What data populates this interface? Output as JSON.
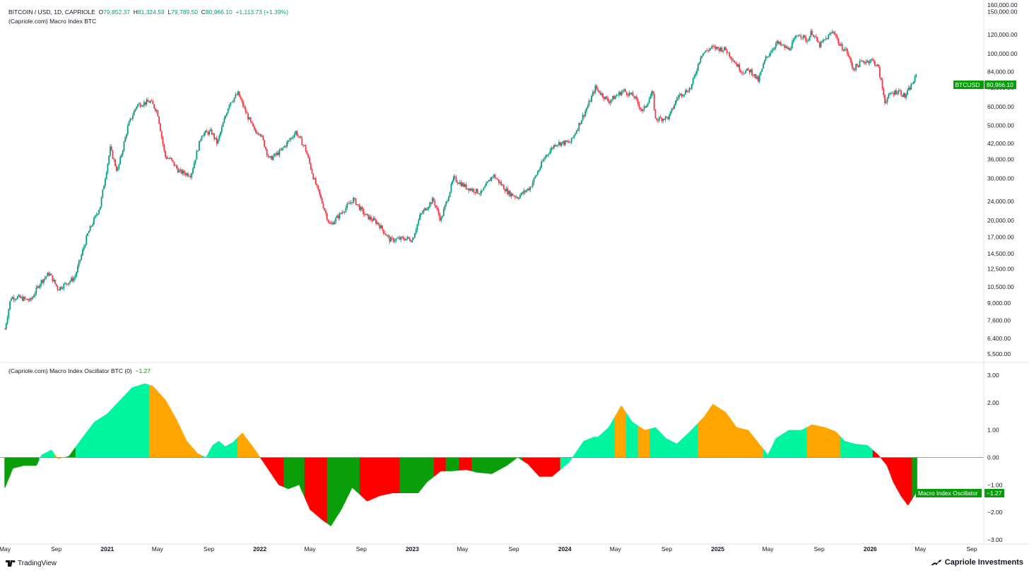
{
  "header": {
    "symbol": "BITCOIN / USD, 1D, CAPRIOLE",
    "open_label": "O",
    "open": "79,852.37",
    "high_label": "H",
    "high": "81,324.59",
    "low_label": "L",
    "low": "79,789.50",
    "close_label": "C",
    "close": "80,966.10",
    "change": "+1,113.73 (+1.39%)",
    "indicator": "(Capriole.com) Macro Index BTC"
  },
  "osc_header": {
    "name": "(Capriole.com) Macro Index Oscillator BTC (0)",
    "value": "−1.27"
  },
  "price_tag": {
    "label": "BTCUSD",
    "value": "80,966.10"
  },
  "osc_tag": {
    "label": "Macro Index Oscillator",
    "value": "−1.27"
  },
  "footer": {
    "left": "TradingView",
    "right": "Capriole Investments"
  },
  "colors": {
    "up": "#089981",
    "down": "#f23645",
    "osc_cyan": "#00f5a0",
    "osc_orange": "#ffa500",
    "osc_green": "#0a9e0a",
    "osc_red": "#ff0000",
    "tag_green": "#089c0a"
  },
  "chart_data": [
    {
      "type": "candlestick-line",
      "title": "BITCOIN / USD, 1D, CAPRIOLE",
      "scale": "log",
      "ylim": [
        5000,
        160000
      ],
      "y_ticks": [
        "160,000.00",
        "150,000.00",
        "120,000.00",
        "100,000.00",
        "84,000.00",
        "72,000.00",
        "60,000.00",
        "50,000.00",
        "42,000.00",
        "36,000.00",
        "30,000.00",
        "24,000.00",
        "20,000.00",
        "17,000.00",
        "14,500.00",
        "12,500.00",
        "10,500.00",
        "9,000.00",
        "7,600.00",
        "6,400.00",
        "5,500.00"
      ],
      "y_tick_values": [
        160000,
        150000,
        120000,
        100000,
        84000,
        72000,
        60000,
        50000,
        42000,
        36000,
        30000,
        24000,
        20000,
        17000,
        14500,
        12500,
        10500,
        9000,
        7600,
        6400,
        5500
      ],
      "x_ticks": [
        "May",
        "Sep",
        "2021",
        "May",
        "Sep",
        "2022",
        "May",
        "Sep",
        "2023",
        "May",
        "Sep",
        "2024",
        "May",
        "Sep",
        "2025",
        "May",
        "Sep",
        "2026",
        "May",
        "Sep"
      ],
      "x_tick_bold": [
        false,
        false,
        true,
        false,
        false,
        true,
        false,
        false,
        true,
        false,
        false,
        true,
        false,
        false,
        true,
        false,
        false,
        true,
        false,
        false
      ],
      "x_tick_dates": [
        "2020-05-01",
        "2020-09-01",
        "2021-01-01",
        "2021-05-01",
        "2021-09-01",
        "2022-01-01",
        "2022-05-01",
        "2022-09-01",
        "2023-01-01",
        "2023-05-01",
        "2023-09-01",
        "2024-01-01",
        "2024-05-01",
        "2024-09-01",
        "2025-01-01",
        "2025-05-01",
        "2025-09-01",
        "2026-01-01",
        "2026-05-01",
        "2026-09-01"
      ],
      "series": [
        {
          "x": [
            "2020-05-01",
            "2020-05-15",
            "2020-06-01",
            "2020-07-01",
            "2020-07-25",
            "2020-08-15",
            "2020-09-05",
            "2020-10-15",
            "2020-11-15",
            "2020-12-15",
            "2021-01-08",
            "2021-01-25",
            "2021-02-20",
            "2021-03-13",
            "2021-04-14",
            "2021-05-01",
            "2021-05-19",
            "2021-06-01",
            "2021-06-22",
            "2021-07-20",
            "2021-08-15",
            "2021-09-07",
            "2021-09-21",
            "2021-10-20",
            "2021-11-10",
            "2021-11-28",
            "2021-12-20",
            "2022-01-01",
            "2022-01-24",
            "2022-02-20",
            "2022-03-28",
            "2022-04-20",
            "2022-05-10",
            "2022-06-18",
            "2022-07-10",
            "2022-08-13",
            "2022-09-10",
            "2022-10-10",
            "2022-11-09",
            "2022-12-15",
            "2023-01-01",
            "2023-01-20",
            "2023-02-20",
            "2023-03-10",
            "2023-04-10",
            "2023-05-10",
            "2023-06-15",
            "2023-07-13",
            "2023-08-20",
            "2023-09-10",
            "2023-10-10",
            "2023-11-15",
            "2023-12-10",
            "2024-01-15",
            "2024-02-28",
            "2024-03-14",
            "2024-04-15",
            "2024-05-20",
            "2024-06-15",
            "2024-07-05",
            "2024-07-29",
            "2024-08-05",
            "2024-09-06",
            "2024-09-27",
            "2024-10-29",
            "2024-11-22",
            "2024-12-17",
            "2025-01-20",
            "2025-02-28",
            "2025-03-20",
            "2025-04-08",
            "2025-04-25",
            "2025-05-22",
            "2025-06-20",
            "2025-07-14",
            "2025-08-03",
            "2025-08-14",
            "2025-09-01",
            "2025-10-06",
            "2025-10-20",
            "2025-11-05",
            "2025-11-21",
            "2025-12-10",
            "2026-01-05",
            "2026-01-20",
            "2026-02-05",
            "2026-02-20",
            "2026-03-10",
            "2026-03-25",
            "2026-04-10",
            "2026-04-22"
          ],
          "close": [
            7000,
            9500,
            9500,
            9200,
            11000,
            12000,
            10300,
            11500,
            17500,
            23000,
            40000,
            32000,
            50000,
            61000,
            63000,
            57000,
            37000,
            36000,
            32000,
            31000,
            46000,
            47000,
            42000,
            62000,
            68000,
            57000,
            47000,
            47000,
            36000,
            39000,
            47000,
            40000,
            30000,
            19000,
            21000,
            24500,
            21000,
            19500,
            16500,
            16800,
            16600,
            21000,
            24500,
            20000,
            30000,
            27500,
            26000,
            31000,
            26000,
            25000,
            27500,
            37000,
            42000,
            42500,
            62000,
            72000,
            63000,
            70000,
            66000,
            57000,
            69000,
            53000,
            54000,
            66000,
            72000,
            99000,
            106000,
            104000,
            84000,
            85000,
            77000,
            95000,
            111000,
            104000,
            122000,
            113000,
            124000,
            108000,
            125000,
            108000,
            103000,
            86000,
            92000,
            94000,
            88000,
            63000,
            68000,
            70000,
            66000,
            74000,
            80966
          ]
        }
      ]
    },
    {
      "type": "area",
      "title": "(Capriole.com) Macro Index Oscillator BTC (0)",
      "ylim": [
        -3,
        3.2
      ],
      "y_ticks": [
        "3.00",
        "2.00",
        "1.00",
        "0.00",
        "−1.00",
        "−2.00",
        "−3.00"
      ],
      "y_tick_values": [
        3,
        2,
        1,
        0,
        -1,
        -2,
        -3
      ],
      "series": [
        {
          "name": "Macro Index Oscillator",
          "x": [
            "2020-05-01",
            "2020-05-20",
            "2020-06-15",
            "2020-07-15",
            "2020-07-28",
            "2020-08-20",
            "2020-09-05",
            "2020-10-01",
            "2020-11-01",
            "2020-12-01",
            "2021-01-01",
            "2021-02-01",
            "2021-03-01",
            "2021-04-01",
            "2021-04-20",
            "2021-05-20",
            "2021-06-15",
            "2021-07-10",
            "2021-08-05",
            "2021-08-25",
            "2021-09-10",
            "2021-09-25",
            "2021-10-10",
            "2021-10-28",
            "2021-11-20",
            "2021-12-15",
            "2022-01-15",
            "2022-02-15",
            "2022-03-10",
            "2022-04-05",
            "2022-05-01",
            "2022-06-01",
            "2022-06-20",
            "2022-07-15",
            "2022-08-10",
            "2022-09-15",
            "2022-10-15",
            "2022-11-15",
            "2022-12-20",
            "2023-01-15",
            "2023-02-05",
            "2023-03-10",
            "2023-04-05",
            "2023-05-10",
            "2023-06-05",
            "2023-07-10",
            "2023-08-15",
            "2023-09-10",
            "2023-10-05",
            "2023-11-01",
            "2023-12-01",
            "2024-01-10",
            "2024-02-15",
            "2024-03-10",
            "2024-03-20",
            "2024-04-15",
            "2024-05-15",
            "2024-06-10",
            "2024-07-10",
            "2024-08-05",
            "2024-08-30",
            "2024-09-25",
            "2024-10-30",
            "2024-11-30",
            "2024-12-20",
            "2025-01-20",
            "2025-02-15",
            "2025-03-15",
            "2025-04-10",
            "2025-05-01",
            "2025-05-20",
            "2025-06-20",
            "2025-07-20",
            "2025-08-15",
            "2025-09-15",
            "2025-10-10",
            "2025-11-01",
            "2025-11-25",
            "2025-12-25",
            "2026-01-20",
            "2026-02-10",
            "2026-02-25",
            "2026-03-15",
            "2026-04-01",
            "2026-04-22"
          ],
          "values": [
            -1.1,
            -0.4,
            -0.3,
            -0.3,
            0.1,
            0.28,
            -0.05,
            0.05,
            0.7,
            1.3,
            1.6,
            2.1,
            2.55,
            2.7,
            2.6,
            2.1,
            1.4,
            0.6,
            0.15,
            0.0,
            0.45,
            0.6,
            0.4,
            0.55,
            0.9,
            0.4,
            -0.3,
            -1.0,
            -1.15,
            -1.0,
            -1.9,
            -2.3,
            -2.5,
            -1.9,
            -1.1,
            -1.6,
            -1.4,
            -1.3,
            -1.3,
            -1.3,
            -0.9,
            -0.5,
            -0.5,
            -0.45,
            -0.55,
            -0.6,
            -0.3,
            0.0,
            -0.25,
            -0.7,
            -0.7,
            -0.2,
            0.6,
            0.75,
            0.75,
            1.1,
            1.9,
            1.3,
            1.0,
            1.1,
            0.7,
            0.5,
            1.0,
            1.5,
            1.95,
            1.65,
            1.1,
            1.0,
            0.5,
            0.1,
            0.7,
            1.0,
            1.0,
            1.2,
            1.1,
            0.95,
            0.6,
            0.5,
            0.45,
            0.1,
            -0.3,
            -0.9,
            -1.4,
            -1.75,
            -1.27
          ],
          "colors": [
            "green",
            "green",
            "green",
            "green",
            "cyan",
            "cyan",
            "orange",
            "green",
            "cyan",
            "cyan",
            "cyan",
            "cyan",
            "cyan",
            "cyan",
            "orange",
            "orange",
            "orange",
            "orange",
            "orange",
            "cyan",
            "cyan",
            "cyan",
            "cyan",
            "cyan",
            "orange",
            "orange",
            "red",
            "red",
            "green",
            "green",
            "red",
            "red",
            "green",
            "green",
            "green",
            "red",
            "red",
            "red",
            "green",
            "green",
            "green",
            "red",
            "green",
            "red",
            "green",
            "green",
            "green",
            "green",
            "red",
            "red",
            "red",
            "cyan",
            "cyan",
            "cyan",
            "cyan",
            "cyan",
            "orange",
            "cyan",
            "orange",
            "cyan",
            "cyan",
            "cyan",
            "cyan",
            "orange",
            "orange",
            "orange",
            "orange",
            "orange",
            "orange",
            "cyan",
            "cyan",
            "cyan",
            "cyan",
            "orange",
            "orange",
            "orange",
            "cyan",
            "cyan",
            "cyan",
            "red",
            "red",
            "red",
            "red",
            "red",
            "green"
          ]
        }
      ]
    }
  ]
}
